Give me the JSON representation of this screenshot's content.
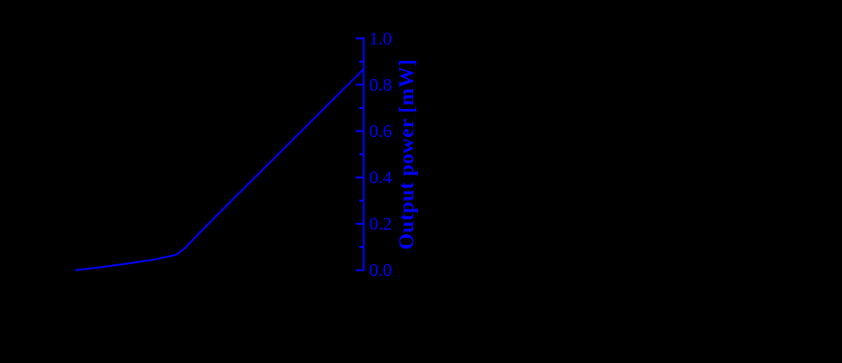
{
  "figure": {
    "background_color": "#000000",
    "accent_color": "#0000ff"
  },
  "chart_data": {
    "type": "line",
    "title": "",
    "legend": "none",
    "grid": false,
    "right_axis": {
      "side": "right",
      "label": "Output power [mW]",
      "range": [
        0.0,
        1.0
      ],
      "major_ticks": [
        0.0,
        0.2,
        0.4,
        0.6,
        0.8,
        1.0
      ],
      "tick_labels": [
        "0.0",
        "0.2",
        "0.4",
        "0.6",
        "0.8",
        "1.0"
      ],
      "minor_ticks": [
        0.1,
        0.3,
        0.5,
        0.7,
        0.9
      ],
      "tick_direction": "in-left",
      "color": "#0000ff"
    },
    "x_axis": {
      "visible": false,
      "note": "no x-axis, ticks or labels are visible in the image; x given as fraction of plot width"
    },
    "series": [
      {
        "name": "output-power-curve",
        "color": "#0000ff",
        "stroke_width": 2,
        "points_x_frac_y_mw": [
          [
            0.0,
            0.0
          ],
          [
            0.09,
            0.013
          ],
          [
            0.18,
            0.028
          ],
          [
            0.27,
            0.045
          ],
          [
            0.35,
            0.066
          ],
          [
            0.38,
            0.095
          ],
          [
            0.45,
            0.185
          ],
          [
            0.55,
            0.31
          ],
          [
            0.65,
            0.434
          ],
          [
            0.75,
            0.558
          ],
          [
            0.85,
            0.682
          ],
          [
            0.95,
            0.806
          ],
          [
            1.0,
            0.868
          ]
        ],
        "threshold_kink_x_frac": 0.35,
        "max_value_mw": 0.87
      }
    ]
  }
}
